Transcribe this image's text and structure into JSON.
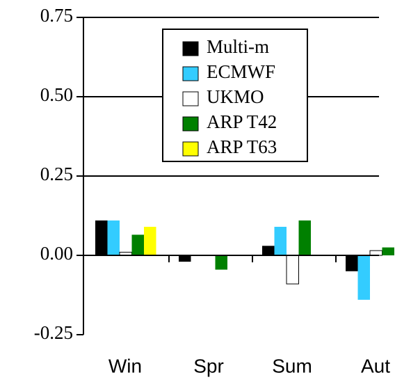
{
  "chart_data": {
    "type": "bar",
    "categories": [
      "Win",
      "Spr",
      "Sum",
      "Aut"
    ],
    "series": [
      {
        "name": "Multi-m",
        "color": "#000000",
        "values": [
          0.11,
          -0.02,
          0.03,
          -0.05
        ]
      },
      {
        "name": "ECMWF",
        "color": "#33ccff",
        "values": [
          0.11,
          0,
          0.09,
          -0.14
        ]
      },
      {
        "name": "UKMO",
        "color": "#ffffff",
        "values": [
          0.01,
          0,
          -0.09,
          0.015
        ]
      },
      {
        "name": "ARP T42",
        "color": "#008000",
        "values": [
          0.065,
          -0.045,
          0.11,
          0.025
        ]
      },
      {
        "name": "ARP T63",
        "color": "#ffff00",
        "values": [
          0.09,
          null,
          null,
          null
        ]
      }
    ],
    "ylim": [
      -0.25,
      0.75
    ],
    "yticks": [
      -0.25,
      {
        "value": 0,
        "label": "0.00"
      },
      0.25,
      {
        "value": 0.5,
        "label": "0.50"
      },
      0.75
    ],
    "grid": true,
    "legend": "top"
  }
}
